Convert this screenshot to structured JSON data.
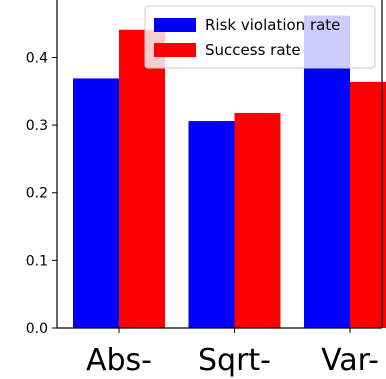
{
  "chart_data": {
    "type": "bar",
    "categories": [
      "Abs-",
      "Sqrt-",
      "Var-"
    ],
    "series": [
      {
        "name": "Risk violation rate",
        "color": "#0000ff",
        "values": [
          0.369,
          0.306,
          0.462
        ]
      },
      {
        "name": "Success rate",
        "color": "#ff0000",
        "values": [
          0.441,
          0.318,
          0.364
        ]
      }
    ],
    "yticks": [
      0.0,
      0.1,
      0.2,
      0.3,
      0.4
    ],
    "ylim": [
      0.0,
      0.485
    ],
    "legend_position": "top-right",
    "grid": false
  }
}
